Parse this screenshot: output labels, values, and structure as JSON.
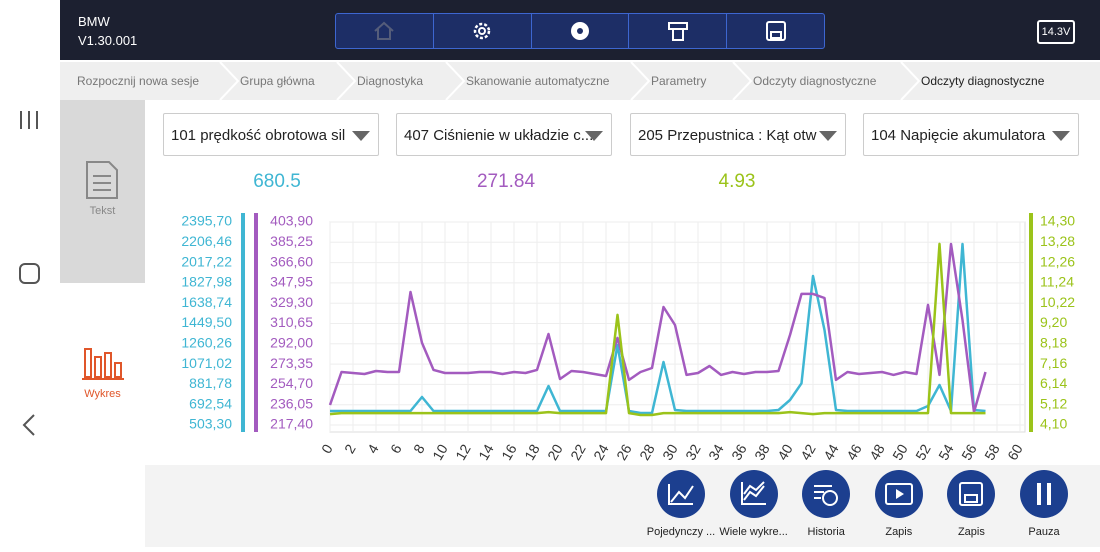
{
  "header": {
    "brand": "BMW",
    "version": "V1.30.001",
    "battery": "14.3V"
  },
  "breadcrumbs": [
    "Rozpocznij nowa sesje",
    "Grupa główna",
    "Diagnostyka",
    "Skanowanie automatyczne",
    "Parametry",
    "Odczyty diagnostyczne",
    "Odczyty diagnostyczne"
  ],
  "side_tabs": [
    "Tekst",
    "Wykres"
  ],
  "extra_selector": "104 Napięcie akumulatora",
  "bottom_buttons": [
    "Pojedynczy ...",
    "Wiele wykre...",
    "Historia",
    "Zapis",
    "Zapis",
    "Pauza"
  ],
  "chart_data": {
    "type": "line",
    "grid": true,
    "xlim": [
      0,
      60
    ],
    "xticks": [
      0,
      2,
      4,
      6,
      8,
      10,
      12,
      14,
      16,
      18,
      20,
      22,
      24,
      26,
      28,
      30,
      32,
      34,
      36,
      38,
      40,
      42,
      44,
      46,
      48,
      50,
      52,
      54,
      56,
      58,
      60
    ],
    "x": [
      0,
      1,
      2,
      3,
      4,
      5,
      6,
      7,
      8,
      9,
      10,
      11,
      12,
      13,
      14,
      15,
      16,
      17,
      18,
      19,
      20,
      21,
      22,
      23,
      24,
      25,
      26,
      27,
      28,
      29,
      30,
      31,
      32,
      33,
      34,
      35,
      36,
      37,
      38,
      39,
      40,
      41,
      42,
      43,
      44,
      45,
      46,
      47,
      48,
      49,
      50,
      51,
      52,
      53,
      54,
      55,
      56,
      57
    ],
    "series": [
      {
        "name": "101 prędkość obrotowa sil",
        "color": "#3fb6d3",
        "current": 680.5,
        "ylim": [
          503.3,
          2395.7
        ],
        "yticks": [
          {
            "value": 503.3,
            "label": "503,30"
          },
          {
            "value": 692.54,
            "label": "692,54"
          },
          {
            "value": 881.78,
            "label": "881,78"
          },
          {
            "value": 1071.02,
            "label": "1071,02"
          },
          {
            "value": 1260.26,
            "label": "1260,26"
          },
          {
            "value": 1449.5,
            "label": "1449,50"
          },
          {
            "value": 1638.74,
            "label": "1638,74"
          },
          {
            "value": 1827.98,
            "label": "1827,98"
          },
          {
            "value": 2017.22,
            "label": "2017,22"
          },
          {
            "value": 2206.46,
            "label": "2206,46"
          },
          {
            "value": 2395.7,
            "label": "2395,70"
          }
        ],
        "values": [
          633.8,
          633.8,
          633.8,
          633.8,
          633.8,
          633.8,
          633.8,
          633.8,
          764.0,
          633.8,
          633.8,
          633.8,
          633.8,
          633.8,
          633.8,
          633.8,
          633.8,
          633.8,
          633.8,
          866.9,
          633.8,
          633.8,
          633.8,
          633.8,
          633.8,
          1249.0,
          633.8,
          615.2,
          615.2,
          1090.6,
          643.1,
          633.8,
          633.8,
          633.8,
          633.8,
          633.8,
          633.8,
          633.8,
          633.8,
          643.1,
          736.3,
          892.0,
          1892.2,
          1388.8,
          643.1,
          633.8,
          633.8,
          633.8,
          633.8,
          633.8,
          633.8,
          633.8,
          680.4,
          876.2,
          633.8,
          2190.2,
          643.1,
          633.8
        ]
      },
      {
        "name": "407 Ciśnienie w układzie c...",
        "color": "#a35bbf",
        "current": 271.84,
        "ylim": [
          217.4,
          403.9
        ],
        "yticks": [
          {
            "value": 217.4,
            "label": "217,40"
          },
          {
            "value": 236.05,
            "label": "236,05"
          },
          {
            "value": 254.7,
            "label": "254,70"
          },
          {
            "value": 273.35,
            "label": "273,35"
          },
          {
            "value": 292,
            "label": "292,00"
          },
          {
            "value": 310.65,
            "label": "310,65"
          },
          {
            "value": 329.3,
            "label": "329,30"
          },
          {
            "value": 347.95,
            "label": "347,95"
          },
          {
            "value": 366.6,
            "label": "366,60"
          },
          {
            "value": 385.25,
            "label": "385,25"
          },
          {
            "value": 403.9,
            "label": "403,90"
          }
        ],
        "values": [
          235.8,
          266.1,
          265.2,
          264.3,
          267.0,
          266.1,
          266.1,
          339.6,
          292.8,
          268.0,
          265.2,
          265.2,
          265.2,
          266.1,
          266.1,
          264.3,
          266.1,
          265.2,
          268.0,
          301.0,
          259.7,
          267.0,
          266.1,
          264.3,
          262.4,
          297.4,
          258.8,
          266.1,
          269.8,
          325.8,
          309.3,
          263.4,
          265.2,
          271.6,
          263.4,
          266.1,
          264.3,
          266.1,
          266.1,
          267.0,
          300.1,
          337.8,
          337.8,
          334.1,
          258.8,
          266.1,
          264.3,
          265.2,
          266.1,
          263.4,
          266.1,
          264.3,
          327.7,
          263.4,
          383.7,
          313.9,
          229.3,
          266.1
        ]
      },
      {
        "name": "205 Przepustnica : Kąt otw",
        "color": "#9bc31a",
        "current": 4.93,
        "ylim": [
          4.1,
          14.3
        ],
        "yticks": [
          {
            "value": 4.1,
            "label": "4,10"
          },
          {
            "value": 5.12,
            "label": "5,12"
          },
          {
            "value": 6.14,
            "label": "6,14"
          },
          {
            "value": 7.16,
            "label": "7,16"
          },
          {
            "value": 8.18,
            "label": "8,18"
          },
          {
            "value": 9.2,
            "label": "9,20"
          },
          {
            "value": 10.22,
            "label": "10,22"
          },
          {
            "value": 11.24,
            "label": "11,24"
          },
          {
            "value": 12.26,
            "label": "12,26"
          },
          {
            "value": 13.28,
            "label": "13,28"
          },
          {
            "value": 14.3,
            "label": "14,30"
          }
        ],
        "values": [
          4.65,
          4.7,
          4.7,
          4.7,
          4.7,
          4.7,
          4.7,
          4.7,
          4.7,
          4.7,
          4.7,
          4.7,
          4.7,
          4.7,
          4.7,
          4.7,
          4.7,
          4.7,
          4.7,
          4.75,
          4.7,
          4.7,
          4.7,
          4.7,
          4.7,
          9.63,
          4.7,
          4.6,
          4.6,
          4.7,
          4.7,
          4.7,
          4.7,
          4.7,
          4.7,
          4.7,
          4.7,
          4.7,
          4.7,
          4.7,
          4.75,
          4.7,
          4.65,
          4.7,
          4.7,
          4.7,
          4.7,
          4.7,
          4.7,
          4.7,
          4.7,
          4.7,
          4.7,
          13.2,
          4.7,
          4.7,
          4.7,
          4.7
        ]
      }
    ]
  }
}
